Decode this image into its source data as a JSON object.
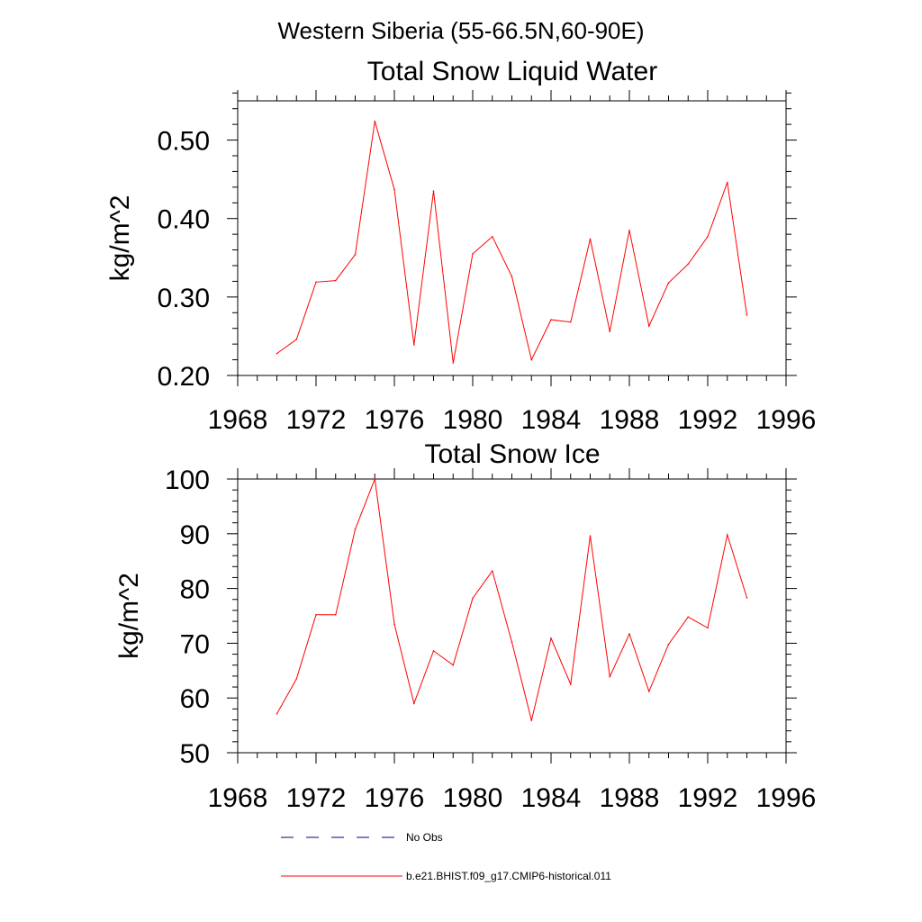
{
  "figure": {
    "suptitle": "Western Siberia (55-66.5N,60-90E)"
  },
  "colors": {
    "model": "#ff0000",
    "obs": "#000080",
    "axis": "#000000"
  },
  "legend": {
    "items": [
      {
        "label": "No Obs",
        "style": "dashed",
        "color": "#000080"
      },
      {
        "label": "b.e21.BHIST.f09_g17.CMIP6-historical.011",
        "style": "solid",
        "color": "#ff0000"
      }
    ]
  },
  "chart_data": [
    {
      "type": "line",
      "title": "Total Snow Liquid Water",
      "xlabel": "",
      "ylabel": "kg/m^2",
      "xlim": [
        1968,
        1996
      ],
      "ylim": [
        0.2,
        0.55
      ],
      "x_ticks": [
        1968,
        1972,
        1976,
        1980,
        1984,
        1988,
        1992,
        1996
      ],
      "y_ticks": [
        "0.20",
        "0.30",
        "0.40",
        "0.50"
      ],
      "grid": false,
      "series": [
        {
          "name": "b.e21.BHIST.f09_g17.CMIP6-historical.011",
          "color": "#ff0000",
          "x": [
            1970,
            1971,
            1972,
            1973,
            1974,
            1975,
            1976,
            1977,
            1978,
            1979,
            1980,
            1981,
            1982,
            1983,
            1984,
            1985,
            1986,
            1987,
            1988,
            1989,
            1990,
            1991,
            1992,
            1993,
            1994
          ],
          "y": [
            0.228,
            0.246,
            0.319,
            0.321,
            0.354,
            0.524,
            0.437,
            0.239,
            0.435,
            0.216,
            0.355,
            0.377,
            0.326,
            0.22,
            0.271,
            0.268,
            0.374,
            0.256,
            0.385,
            0.263,
            0.318,
            0.342,
            0.377,
            0.446,
            0.277
          ]
        }
      ]
    },
    {
      "type": "line",
      "title": "Total Snow Ice",
      "xlabel": "",
      "ylabel": "kg/m^2",
      "xlim": [
        1968,
        1996
      ],
      "ylim": [
        50,
        100
      ],
      "x_ticks": [
        1968,
        1972,
        1976,
        1980,
        1984,
        1988,
        1992,
        1996
      ],
      "y_ticks": [
        "50",
        "60",
        "70",
        "80",
        "90",
        "100"
      ],
      "grid": false,
      "series": [
        {
          "name": "b.e21.BHIST.f09_g17.CMIP6-historical.011",
          "color": "#ff0000",
          "x": [
            1970,
            1971,
            1972,
            1973,
            1974,
            1975,
            1976,
            1977,
            1978,
            1979,
            1980,
            1981,
            1982,
            1983,
            1984,
            1985,
            1986,
            1987,
            1988,
            1989,
            1990,
            1991,
            1992,
            1993,
            1994
          ],
          "y": [
            57.1,
            63.5,
            75.2,
            75.2,
            90.8,
            100.0,
            73.5,
            59.0,
            68.6,
            66.0,
            78.2,
            83.2,
            70.2,
            55.9,
            70.9,
            62.5,
            89.6,
            63.9,
            71.7,
            61.2,
            69.8,
            74.8,
            72.8,
            89.8,
            78.3
          ]
        }
      ]
    }
  ]
}
